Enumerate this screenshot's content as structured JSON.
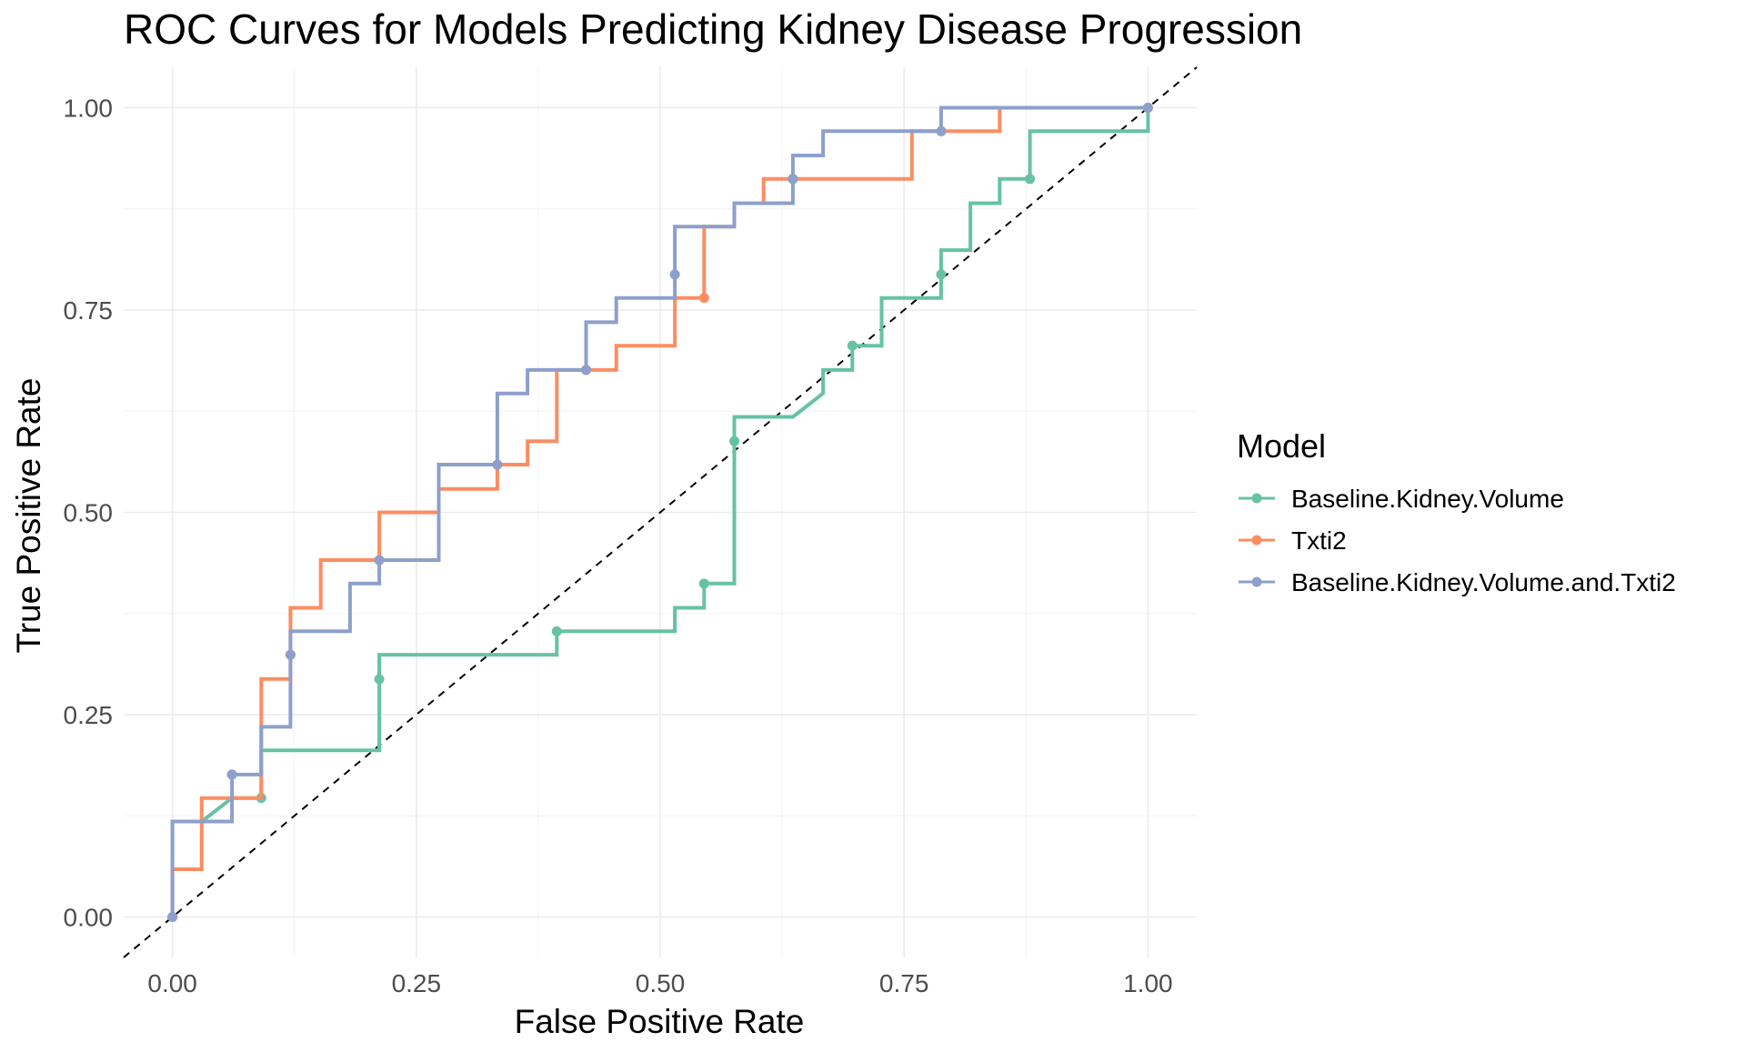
{
  "chart_data": {
    "type": "line",
    "title": "ROC Curves for Models Predicting Kidney Disease Progression",
    "xlabel": "False Positive Rate",
    "ylabel": "True Positive Rate",
    "xlim": [
      -0.05,
      1.05
    ],
    "ylim": [
      -0.05,
      1.05
    ],
    "xticks": [
      0,
      0.25,
      0.5,
      0.75,
      1
    ],
    "xtick_labels": [
      "0.00",
      "0.25",
      "0.50",
      "0.75",
      "1.00"
    ],
    "yticks": [
      0,
      0.25,
      0.5,
      0.75,
      1
    ],
    "ytick_labels": [
      "0.00",
      "0.25",
      "0.50",
      "0.75",
      "1.00"
    ],
    "grid": true,
    "legend": {
      "title": "Model",
      "position": "right"
    },
    "reference_line": {
      "style": "dashed",
      "color": "#000000",
      "from": [
        0,
        0
      ],
      "to": [
        1,
        1
      ]
    },
    "series": [
      {
        "name": "Baseline.Kidney.Volume",
        "color": "#66C2A5",
        "path": [
          [
            0,
            0
          ],
          [
            0,
            0.118
          ],
          [
            0.03,
            0.118
          ],
          [
            0.061,
            0.147
          ],
          [
            0.091,
            0.147
          ],
          [
            0.091,
            0.206
          ],
          [
            0.212,
            0.206
          ],
          [
            0.212,
            0.324
          ],
          [
            0.394,
            0.324
          ],
          [
            0.394,
            0.353
          ],
          [
            0.515,
            0.353
          ],
          [
            0.515,
            0.382
          ],
          [
            0.545,
            0.382
          ],
          [
            0.545,
            0.412
          ],
          [
            0.576,
            0.412
          ],
          [
            0.576,
            0.618
          ],
          [
            0.636,
            0.618
          ],
          [
            0.667,
            0.647
          ],
          [
            0.667,
            0.676
          ],
          [
            0.697,
            0.676
          ],
          [
            0.697,
            0.706
          ],
          [
            0.727,
            0.706
          ],
          [
            0.727,
            0.765
          ],
          [
            0.788,
            0.765
          ],
          [
            0.788,
            0.824
          ],
          [
            0.818,
            0.824
          ],
          [
            0.818,
            0.882
          ],
          [
            0.848,
            0.882
          ],
          [
            0.848,
            0.912
          ],
          [
            0.879,
            0.912
          ],
          [
            0.879,
            0.971
          ],
          [
            1,
            0.971
          ],
          [
            1,
            1
          ]
        ],
        "points": [
          [
            0,
            0
          ],
          [
            0.091,
            0.147
          ],
          [
            0.212,
            0.294
          ],
          [
            0.394,
            0.353
          ],
          [
            0.545,
            0.412
          ],
          [
            0.576,
            0.588
          ],
          [
            0.697,
            0.706
          ],
          [
            0.788,
            0.794
          ],
          [
            0.879,
            0.912
          ],
          [
            1,
            1
          ]
        ]
      },
      {
        "name": "Txti2",
        "color": "#FC8D62",
        "path": [
          [
            0,
            0
          ],
          [
            0,
            0.059
          ],
          [
            0.03,
            0.059
          ],
          [
            0.03,
            0.147
          ],
          [
            0.091,
            0.147
          ],
          [
            0.091,
            0.294
          ],
          [
            0.121,
            0.294
          ],
          [
            0.121,
            0.382
          ],
          [
            0.152,
            0.382
          ],
          [
            0.152,
            0.441
          ],
          [
            0.212,
            0.441
          ],
          [
            0.212,
            0.5
          ],
          [
            0.273,
            0.5
          ],
          [
            0.273,
            0.529
          ],
          [
            0.333,
            0.529
          ],
          [
            0.333,
            0.559
          ],
          [
            0.364,
            0.559
          ],
          [
            0.364,
            0.588
          ],
          [
            0.394,
            0.588
          ],
          [
            0.394,
            0.676
          ],
          [
            0.455,
            0.676
          ],
          [
            0.455,
            0.706
          ],
          [
            0.515,
            0.706
          ],
          [
            0.515,
            0.765
          ],
          [
            0.545,
            0.765
          ],
          [
            0.545,
            0.853
          ],
          [
            0.576,
            0.853
          ],
          [
            0.576,
            0.882
          ],
          [
            0.606,
            0.882
          ],
          [
            0.606,
            0.912
          ],
          [
            0.758,
            0.912
          ],
          [
            0.758,
            0.971
          ],
          [
            0.848,
            0.971
          ],
          [
            0.848,
            1
          ],
          [
            1,
            1
          ]
        ],
        "points": [
          [
            0,
            0
          ],
          [
            0.061,
            0.176
          ],
          [
            0.121,
            0.324
          ],
          [
            0.212,
            0.441
          ],
          [
            0.333,
            0.559
          ],
          [
            0.424,
            0.676
          ],
          [
            0.545,
            0.765
          ],
          [
            0.636,
            0.912
          ],
          [
            0.788,
            0.971
          ],
          [
            1,
            1
          ]
        ]
      },
      {
        "name": "Baseline.Kidney.Volume.and.Txti2",
        "color": "#8DA0CB",
        "path": [
          [
            0,
            0
          ],
          [
            0,
            0.118
          ],
          [
            0.061,
            0.118
          ],
          [
            0.061,
            0.176
          ],
          [
            0.091,
            0.176
          ],
          [
            0.091,
            0.235
          ],
          [
            0.121,
            0.235
          ],
          [
            0.121,
            0.353
          ],
          [
            0.182,
            0.353
          ],
          [
            0.182,
            0.412
          ],
          [
            0.212,
            0.412
          ],
          [
            0.212,
            0.441
          ],
          [
            0.273,
            0.441
          ],
          [
            0.273,
            0.559
          ],
          [
            0.333,
            0.559
          ],
          [
            0.333,
            0.647
          ],
          [
            0.364,
            0.647
          ],
          [
            0.364,
            0.676
          ],
          [
            0.424,
            0.676
          ],
          [
            0.424,
            0.735
          ],
          [
            0.455,
            0.735
          ],
          [
            0.455,
            0.765
          ],
          [
            0.515,
            0.765
          ],
          [
            0.515,
            0.853
          ],
          [
            0.576,
            0.853
          ],
          [
            0.576,
            0.882
          ],
          [
            0.636,
            0.882
          ],
          [
            0.636,
            0.941
          ],
          [
            0.667,
            0.941
          ],
          [
            0.667,
            0.971
          ],
          [
            0.788,
            0.971
          ],
          [
            0.788,
            1
          ],
          [
            1,
            1
          ]
        ],
        "points": [
          [
            0,
            0
          ],
          [
            0.061,
            0.176
          ],
          [
            0.121,
            0.324
          ],
          [
            0.212,
            0.441
          ],
          [
            0.333,
            0.559
          ],
          [
            0.424,
            0.676
          ],
          [
            0.515,
            0.794
          ],
          [
            0.636,
            0.912
          ],
          [
            0.788,
            0.971
          ],
          [
            1,
            1
          ]
        ]
      }
    ]
  }
}
